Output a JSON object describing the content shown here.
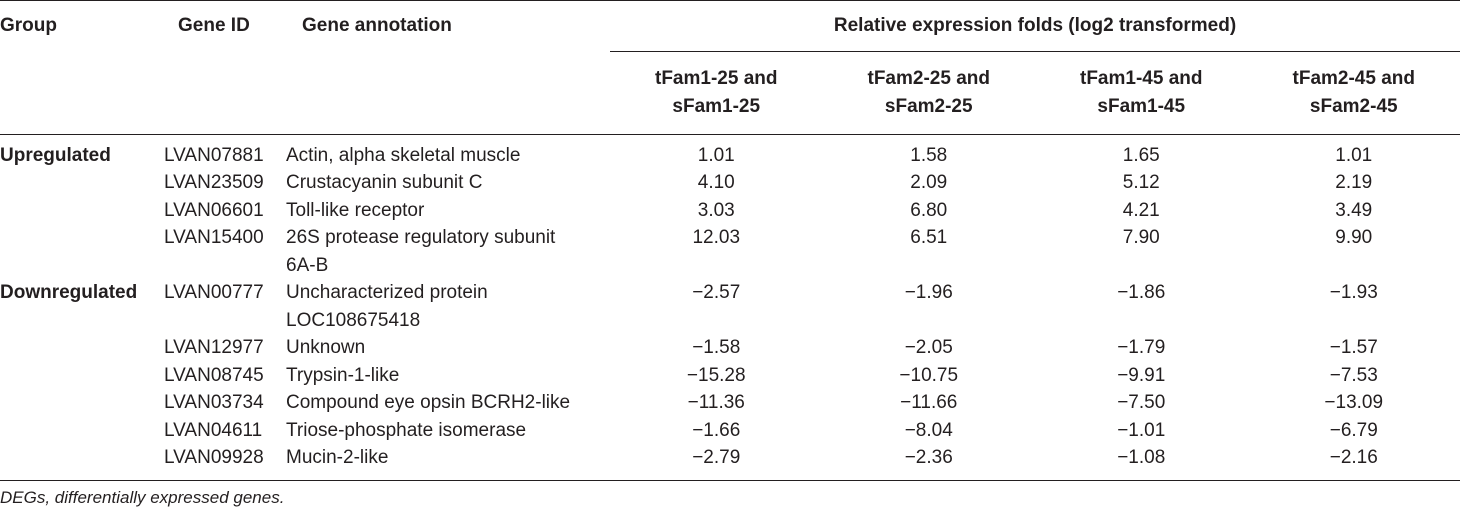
{
  "table": {
    "headers": {
      "group": "Group",
      "gene_id": "Gene ID",
      "annotation": "Gene annotation",
      "span": "Relative expression folds (log2 transformed)",
      "comparisons": [
        [
          "tFam1-25 and",
          "sFam1-25"
        ],
        [
          "tFam2-25 and",
          "sFam2-25"
        ],
        [
          "tFam1-45 and",
          "sFam1-45"
        ],
        [
          "tFam2-45 and",
          "sFam2-45"
        ]
      ]
    },
    "rows": [
      {
        "group": "Upregulated",
        "id": "LVAN07881",
        "annotation": "Actin, alpha skeletal muscle",
        "values": [
          "1.01",
          "1.58",
          "1.65",
          "1.01"
        ]
      },
      {
        "group": "",
        "id": "LVAN23509",
        "annotation": "Crustacyanin subunit C",
        "values": [
          "4.10",
          "2.09",
          "5.12",
          "2.19"
        ]
      },
      {
        "group": "",
        "id": "LVAN06601",
        "annotation": "Toll-like receptor",
        "values": [
          "3.03",
          "6.80",
          "4.21",
          "3.49"
        ]
      },
      {
        "group": "",
        "id": "LVAN15400",
        "annotation": "26S protease regulatory subunit 6A-B",
        "values": [
          "12.03",
          "6.51",
          "7.90",
          "9.90"
        ]
      },
      {
        "group": "Downregulated",
        "id": "LVAN00777",
        "annotation": "Uncharacterized protein LOC108675418",
        "values": [
          "−2.57",
          "−1.96",
          "−1.86",
          "−1.93"
        ]
      },
      {
        "group": "",
        "id": "LVAN12977",
        "annotation": "Unknown",
        "values": [
          "−1.58",
          "−2.05",
          "−1.79",
          "−1.57"
        ]
      },
      {
        "group": "",
        "id": "LVAN08745",
        "annotation": "Trypsin-1-like",
        "values": [
          "−15.28",
          "−10.75",
          "−9.91",
          "−7.53"
        ]
      },
      {
        "group": "",
        "id": "LVAN03734",
        "annotation": "Compound eye opsin BCRH2-like",
        "values": [
          "−11.36",
          "−11.66",
          "−7.50",
          "−13.09"
        ]
      },
      {
        "group": "",
        "id": "LVAN04611",
        "annotation": "Triose-phosphate isomerase",
        "values": [
          "−1.66",
          "−8.04",
          "−1.01",
          "−6.79"
        ]
      },
      {
        "group": "",
        "id": "LVAN09928",
        "annotation": "Mucin-2-like",
        "values": [
          "−2.79",
          "−2.36",
          "−1.08",
          "−2.16"
        ]
      }
    ]
  },
  "footnote": "DEGs, differentially expressed genes."
}
